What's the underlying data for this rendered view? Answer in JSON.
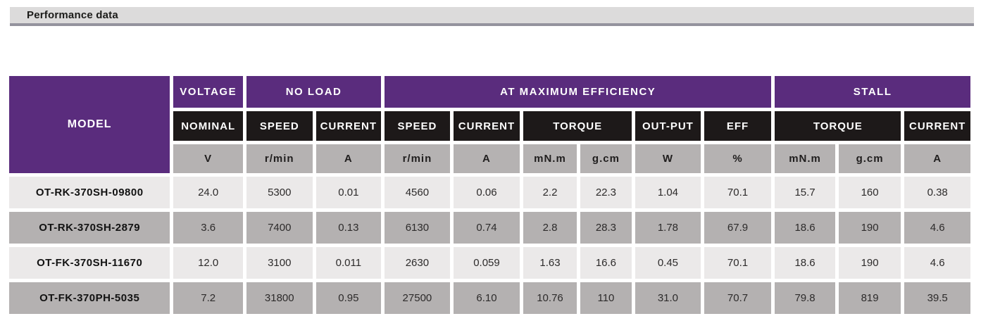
{
  "section": {
    "title": "Performance data"
  },
  "colors": {
    "purple_header": "#5a2c7d",
    "black_header": "#1d1919",
    "unit_row_gray": "#b5b2b2",
    "row_light_gray": "#ebe9e9",
    "row_dark_gray": "#b4b1b1",
    "titlebar_bg": "#dcdbdb",
    "titlebar_border": "#94939d"
  },
  "table": {
    "header": {
      "model_label": "MODEL",
      "groups": [
        {
          "label": "VOLTAGE",
          "span": 1
        },
        {
          "label": "NO LOAD",
          "span": 2
        },
        {
          "label": "AT MAXIMUM EFFICIENCY",
          "span": 6
        },
        {
          "label": "STALL",
          "span": 3
        }
      ],
      "subheaders": [
        {
          "label": "NOMINAL",
          "span": 1
        },
        {
          "label": "SPEED",
          "span": 1
        },
        {
          "label": "CURRENT",
          "span": 1
        },
        {
          "label": "SPEED",
          "span": 1
        },
        {
          "label": "CURRENT",
          "span": 1
        },
        {
          "label": "TORQUE",
          "span": 2
        },
        {
          "label": "OUT-PUT",
          "span": 1
        },
        {
          "label": "EFF",
          "span": 1
        },
        {
          "label": "TORQUE",
          "span": 2
        },
        {
          "label": "CURRENT",
          "span": 1
        }
      ],
      "units": [
        "V",
        "r/min",
        "A",
        "r/min",
        "A",
        "mN.m",
        "g.cm",
        "W",
        "%",
        "mN.m",
        "g.cm",
        "A"
      ]
    },
    "rows": [
      {
        "model": "OT-RK-370SH-09800",
        "values": [
          "24.0",
          "5300",
          "0.01",
          "4560",
          "0.06",
          "2.2",
          "22.3",
          "1.04",
          "70.1",
          "15.7",
          "160",
          "0.38"
        ]
      },
      {
        "model": "OT-RK-370SH-2879",
        "values": [
          "3.6",
          "7400",
          "0.13",
          "6130",
          "0.74",
          "2.8",
          "28.3",
          "1.78",
          "67.9",
          "18.6",
          "190",
          "4.6"
        ]
      },
      {
        "model": "OT-FK-370SH-11670",
        "values": [
          "12.0",
          "3100",
          "0.011",
          "2630",
          "0.059",
          "1.63",
          "16.6",
          "0.45",
          "70.1",
          "18.6",
          "190",
          "4.6"
        ]
      },
      {
        "model": "OT-FK-370PH-5035",
        "values": [
          "7.2",
          "31800",
          "0.95",
          "27500",
          "6.10",
          "10.76",
          "110",
          "31.0",
          "70.7",
          "79.8",
          "819",
          "39.5"
        ]
      }
    ]
  }
}
